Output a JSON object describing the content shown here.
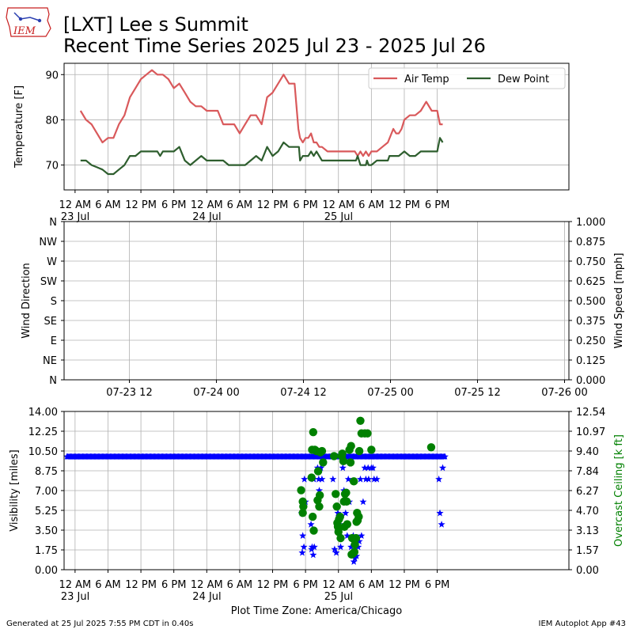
{
  "header": {
    "title_line1": "[LXT] Lee s Summit",
    "title_line2": "Recent Time Series 2025 Jul 23 - 2025 Jul 26",
    "logo_text": "IEM"
  },
  "footer": {
    "left": "Generated at 25 Jul 2025 7:55 PM CDT in 0.40s",
    "right": "IEM Autoplot App #43"
  },
  "colors": {
    "air_temp": "#d9595b",
    "dew_point": "#2e5e2e",
    "visibility": "#0000ff",
    "ceiling": "#008000",
    "ceiling_label": "#008000",
    "grid": "#b0b0b0"
  },
  "chart_data": [
    {
      "type": "line",
      "ylabel": "Temperature [F]",
      "ylim": [
        64.5,
        92.5
      ],
      "yticks": [
        70,
        80,
        90
      ],
      "xlim_hours": [
        -2,
        90
      ],
      "xticks": [
        {
          "h": 0,
          "label": "12 AM",
          "sub": "23 Jul"
        },
        {
          "h": 6,
          "label": "6 AM"
        },
        {
          "h": 12,
          "label": "12 PM"
        },
        {
          "h": 18,
          "label": "6 PM"
        },
        {
          "h": 24,
          "label": "12 AM",
          "sub": "24 Jul"
        },
        {
          "h": 30,
          "label": "6 AM"
        },
        {
          "h": 36,
          "label": "12 PM"
        },
        {
          "h": 42,
          "label": "6 PM"
        },
        {
          "h": 48,
          "label": "12 AM",
          "sub": "25 Jul"
        },
        {
          "h": 54,
          "label": "6 AM"
        },
        {
          "h": 60,
          "label": "12 PM"
        },
        {
          "h": 66,
          "label": "6 PM"
        }
      ],
      "grid": true,
      "legend": "top-right",
      "series": [
        {
          "name": "Air Temp",
          "x": [
            1,
            2,
            3,
            4,
            5,
            6,
            7,
            8,
            9,
            10,
            11,
            12,
            13,
            14,
            15,
            16,
            17,
            18,
            19,
            20,
            21,
            22,
            23,
            24,
            25,
            26,
            27,
            28,
            29,
            30,
            31,
            32,
            33,
            34,
            35,
            36,
            37,
            38,
            39,
            40,
            40.7,
            41,
            41.5,
            42,
            42.5,
            43,
            43.5,
            44,
            44.5,
            45,
            46,
            47,
            48,
            49,
            50,
            51,
            51.5,
            52,
            52.5,
            53,
            53.5,
            54,
            55,
            56,
            57,
            58,
            58.5,
            59,
            59.5,
            60,
            61,
            62,
            63,
            64,
            65,
            66,
            66.5,
            67
          ],
          "y": [
            82,
            80,
            79,
            77,
            75,
            76,
            76,
            79,
            81,
            85,
            87,
            89,
            90,
            91,
            90,
            90,
            89,
            87,
            88,
            86,
            84,
            83,
            83,
            82,
            82,
            82,
            79,
            79,
            79,
            77,
            79,
            81,
            81,
            79,
            85,
            86,
            88,
            90,
            88,
            88,
            78,
            76,
            75,
            76,
            76,
            77,
            75,
            75,
            74,
            74,
            73,
            73,
            73,
            73,
            73,
            73,
            72,
            73,
            72,
            73,
            72,
            73,
            73,
            74,
            75,
            78,
            77,
            77,
            78,
            80,
            81,
            81,
            82,
            84,
            82,
            82,
            79,
            79
          ]
        },
        {
          "name": "Dew Point",
          "x": [
            1,
            2,
            3,
            4,
            5,
            6,
            7,
            8,
            9,
            10,
            11,
            12,
            13,
            14,
            15,
            15.5,
            16,
            17,
            18,
            19,
            20,
            21,
            22,
            23,
            24,
            25,
            26,
            27,
            28,
            29,
            30,
            31,
            32,
            33,
            34,
            35,
            36,
            37,
            38,
            39,
            40,
            40.8,
            41,
            41.5,
            42,
            42.5,
            43,
            43.5,
            44,
            45,
            46,
            47,
            48,
            49,
            50,
            51,
            51.2,
            51.5,
            52,
            53,
            53.2,
            53.5,
            54,
            55,
            56,
            57,
            57.3,
            58,
            59,
            60,
            61,
            62,
            63,
            64,
            65,
            66,
            66.5,
            67
          ],
          "y": [
            71,
            71,
            70,
            69.5,
            69,
            68,
            68,
            69,
            70,
            72,
            72,
            73,
            73,
            73,
            73,
            72,
            73,
            73,
            73,
            74,
            71,
            70,
            71,
            72,
            71,
            71,
            71,
            71,
            70,
            70,
            70,
            70,
            71,
            72,
            71,
            74,
            72,
            73,
            75,
            74,
            74,
            74,
            71,
            72,
            72,
            72,
            73,
            72,
            73,
            71,
            71,
            71,
            71,
            71,
            71,
            71,
            71,
            72,
            70,
            70,
            71,
            70,
            70,
            71,
            71,
            71,
            72,
            72,
            72,
            73,
            72,
            72,
            73,
            73,
            73,
            73,
            76,
            75
          ]
        }
      ]
    },
    {
      "type": "line",
      "ylabel": "Wind Direction",
      "ylabel_right": "Wind Speed [mph]",
      "ylabels_left": [
        "N",
        "NE",
        "E",
        "SE",
        "S",
        "SW",
        "W",
        "NW",
        "N"
      ],
      "yticks_right": [
        "0.000",
        "0.125",
        "0.250",
        "0.375",
        "0.500",
        "0.625",
        "0.750",
        "0.875",
        "1.000"
      ],
      "xticks": [
        "07-23 12",
        "07-24 00",
        "07-24 12",
        "07-25 00",
        "07-25 12",
        "07-26 00"
      ],
      "grid": true,
      "series": []
    },
    {
      "type": "scatter",
      "xlabel": "Plot Time Zone: America/Chicago",
      "ylabel": "Visibility [miles]",
      "ylabel_right": "Overcast Ceiling [k ft]",
      "ylim": [
        0,
        14
      ],
      "yticks": [
        "0.00",
        "1.75",
        "3.50",
        "5.25",
        "7.00",
        "8.75",
        "10.50",
        "12.25",
        "14.00"
      ],
      "yticks_right": [
        "0.00",
        "1.57",
        "3.13",
        "4.70",
        "6.27",
        "7.84",
        "9.40",
        "10.97",
        "12.54"
      ],
      "ylim_right": [
        0,
        12.54
      ],
      "visibility_baseline": 10,
      "visibility_baseline_range": [
        -1.5,
        67.5
      ],
      "series": [
        {
          "name": "Visibility",
          "x": [
            41.3,
            41.5,
            41.7,
            41.4,
            41.8,
            42.0,
            43.0,
            43.2,
            43.4,
            43.5,
            43.1,
            43.6,
            44.2,
            44.4,
            44.5,
            44.8,
            44.3,
            45.0,
            47.0,
            47.3,
            47.6,
            48.0,
            47.9,
            48.4,
            48.8,
            49.0,
            49.3,
            49.6,
            49.8,
            50.0,
            49.1,
            50.3,
            50.5,
            50.7,
            51.0,
            50.8,
            51.3,
            51.6,
            51.8,
            52.0,
            52.2,
            52.5,
            52.8,
            53.0,
            53.4,
            53.5,
            54.0,
            54.3,
            54.5,
            55.0,
            66.3,
            66.5,
            66.8,
            67.0
          ],
          "y": [
            5,
            3,
            2,
            1.5,
            8,
            6,
            4,
            2,
            1.3,
            8,
            1.8,
            2,
            9,
            8,
            7,
            9,
            6,
            8,
            8,
            1.8,
            1.5,
            4,
            5,
            2,
            9,
            7,
            5,
            3,
            8,
            6,
            4,
            2,
            1.5,
            3,
            1,
            0.7,
            1.2,
            2,
            2.5,
            8,
            3,
            6,
            9,
            8,
            9,
            8,
            9,
            9,
            8,
            8,
            8,
            5,
            4,
            9
          ]
        },
        {
          "name": "Ceiling",
          "x": [
            41.2,
            41.5,
            41.6,
            41.5,
            43.1,
            43.3,
            43.4,
            43.2,
            43.5,
            43.7,
            44.0,
            44.2,
            44.3,
            44.5,
            44.7,
            44.6,
            45.0,
            45.2,
            47.2,
            47.5,
            47.7,
            48.0,
            47.8,
            47.9,
            48.1,
            48.3,
            48.4,
            48.6,
            48.7,
            48.9,
            49.0,
            49.2,
            49.4,
            49.5,
            49.1,
            49.6,
            50.0,
            50.2,
            50.4,
            50.5,
            50.3,
            50.7,
            50.8,
            50.9,
            51.0,
            51.2,
            51.3,
            51.4,
            51.5,
            51.7,
            51.8,
            52.0,
            52.2,
            52.8,
            53.3,
            54.0,
            64.9
          ],
          "y": [
            6.3,
            5.4,
            5.0,
            4.5,
            7.3,
            4.2,
            10.9,
            9.5,
            3.1,
            9.5,
            9.4,
            5.5,
            7.8,
            5.0,
            9.3,
            5.9,
            9.4,
            8.5,
            9.0,
            6.0,
            5.0,
            3.0,
            3.7,
            3.4,
            4.0,
            4.2,
            2.5,
            9.0,
            9.2,
            8.6,
            5.4,
            6.0,
            6.1,
            5.4,
            3.4,
            3.6,
            9.5,
            8.5,
            1.2,
            2.5,
            9.8,
            1.3,
            7.0,
            1.4,
            2.0,
            2.5,
            3.8,
            4.5,
            3.9,
            4.2,
            9.4,
            11.8,
            10.8,
            10.8,
            10.8,
            9.5,
            9.7
          ]
        }
      ]
    }
  ]
}
